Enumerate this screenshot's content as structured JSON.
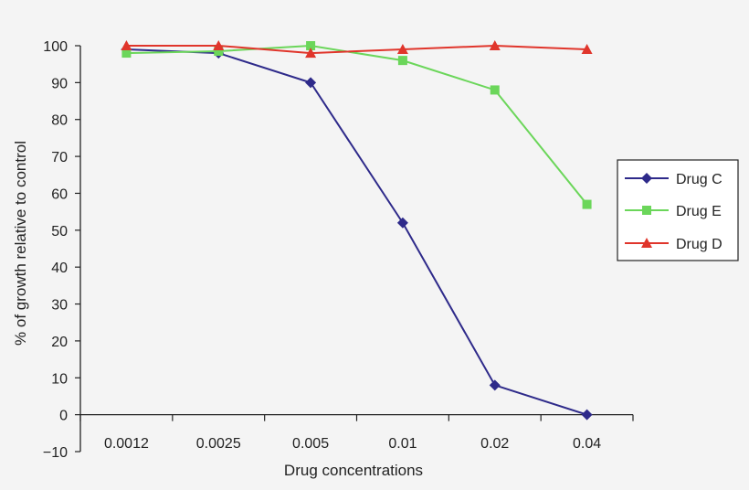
{
  "chart_data": {
    "type": "line",
    "title": "",
    "xlabel": "Drug concentrations",
    "ylabel": "% of growth relative to control",
    "categories": [
      "0.0012",
      "0.0025",
      "0.005",
      "0.01",
      "0.02",
      "0.04"
    ],
    "y_ticks": [
      "100",
      "90",
      "80",
      "70",
      "60",
      "50",
      "40",
      "30",
      "20",
      "10",
      "0",
      "−10"
    ],
    "ylim": [
      -10,
      100
    ],
    "grid": false,
    "legend_position": "right",
    "series": [
      {
        "name": "Drug C",
        "color": "#2e2a8a",
        "marker": "diamond",
        "values": [
          99,
          98,
          90,
          52,
          8,
          0
        ]
      },
      {
        "name": "Drug E",
        "color": "#6bd65a",
        "marker": "square",
        "values": [
          98,
          98.5,
          100,
          96,
          88,
          57
        ]
      },
      {
        "name": "Drug D",
        "color": "#e0352b",
        "marker": "triangle",
        "values": [
          100,
          100,
          98,
          99,
          100,
          99
        ]
      }
    ]
  }
}
